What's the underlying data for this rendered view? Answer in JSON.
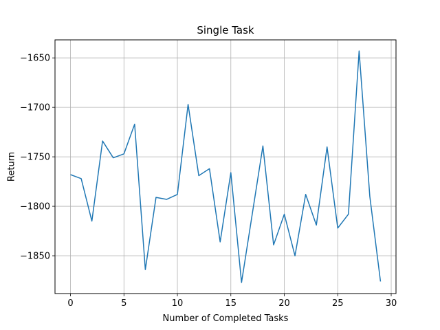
{
  "chart_data": {
    "type": "line",
    "title": "Single Task",
    "xlabel": "Number of Completed Tasks",
    "ylabel": "Return",
    "xlim": [
      -1.45,
      30.45
    ],
    "ylim": [
      -1888.2,
      -1631.8
    ],
    "xticks": [
      0,
      5,
      10,
      15,
      20,
      25,
      30
    ],
    "yticks": [
      -1850,
      -1800,
      -1750,
      -1700,
      -1650
    ],
    "grid": true,
    "line_color": "#1f77b4",
    "series": [
      {
        "x": [
          0,
          1,
          2,
          3,
          4,
          5,
          6,
          7,
          8,
          9,
          10,
          11,
          12,
          13,
          14,
          15,
          16,
          17,
          18,
          19,
          20,
          21,
          22,
          23,
          24,
          25,
          26,
          27,
          28,
          29
        ],
        "values": [
          -1768,
          -1772,
          -1815,
          -1734,
          -1751,
          -1747,
          -1717,
          -1864,
          -1791,
          -1793,
          -1788,
          -1697,
          -1769,
          -1762,
          -1836,
          -1766,
          -1877,
          -1808,
          -1739,
          -1839,
          -1808,
          -1850,
          -1788,
          -1819,
          -1740,
          -1822,
          -1808,
          -1643,
          -1790,
          -1876
        ]
      }
    ]
  }
}
